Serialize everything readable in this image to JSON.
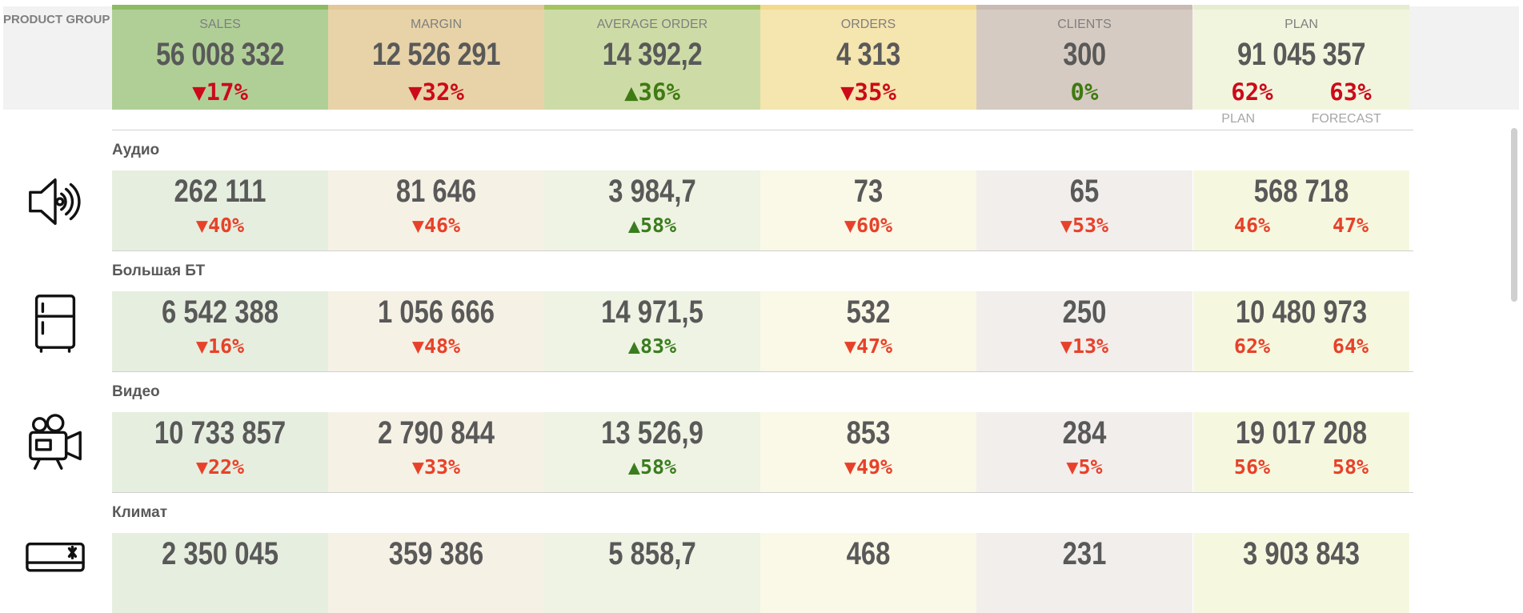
{
  "header": {
    "group_label": "PRODUCT GROUP",
    "columns": [
      {
        "key": "sales",
        "name": "SALES",
        "value": "56 008 332",
        "change": "▼17%",
        "dir": "down",
        "cap_color": "#8dbb62",
        "bg": "#b0cf97"
      },
      {
        "key": "margin",
        "name": "MARGIN",
        "value": "12 526 291",
        "change": "▼32%",
        "dir": "down",
        "cap_color": "#e3c89a",
        "bg": "#e8d3a8"
      },
      {
        "key": "avg_order",
        "name": "AVERAGE ORDER",
        "value": "14 392,2",
        "change": "▲36%",
        "dir": "up",
        "cap_color": "#a4c45f",
        "bg": "#cddca6"
      },
      {
        "key": "orders",
        "name": "ORDERS",
        "value": "4 313",
        "change": "▼35%",
        "dir": "down",
        "cap_color": "#f2d98c",
        "bg": "#f5e5ae"
      },
      {
        "key": "clients",
        "name": "CLIENTS",
        "value": "300",
        "change": "0%",
        "dir": "up",
        "cap_color": "#c9bbb1",
        "bg": "#d6cbc2"
      },
      {
        "key": "plan",
        "name": "PLAN",
        "value": "91 045 357",
        "plan_pct": "62%",
        "forecast_pct": "63%",
        "cap_color": "#e5ecd1",
        "bg": "#f2f5dd"
      }
    ],
    "plan_label": "PLAN",
    "forecast_label": "FORECAST"
  },
  "categories": [
    {
      "title": "Аудио",
      "icon": "speaker-icon",
      "values": [
        "262 111",
        "81 646",
        "3 984,7",
        "73",
        "65",
        "568 718"
      ],
      "changes": [
        "▼40%",
        "▼46%",
        "▲58%",
        "▼60%",
        "▼53%"
      ],
      "dirs": [
        "down",
        "down",
        "up",
        "down",
        "down"
      ],
      "plan_pct": "46%",
      "forecast_pct": "47%"
    },
    {
      "title": "Большая БТ",
      "icon": "fridge-icon",
      "values": [
        "6 542 388",
        "1 056 666",
        "14 971,5",
        "532",
        "250",
        "10 480 973"
      ],
      "changes": [
        "▼16%",
        "▼48%",
        "▲83%",
        "▼47%",
        "▼13%"
      ],
      "dirs": [
        "down",
        "down",
        "up",
        "down",
        "down"
      ],
      "plan_pct": "62%",
      "forecast_pct": "64%"
    },
    {
      "title": "Видео",
      "icon": "video-camera-icon",
      "values": [
        "10 733 857",
        "2 790 844",
        "13 526,9",
        "853",
        "284",
        "19 017 208"
      ],
      "changes": [
        "▼22%",
        "▼33%",
        "▲58%",
        "▼49%",
        "▼5%"
      ],
      "dirs": [
        "down",
        "down",
        "up",
        "down",
        "down"
      ],
      "plan_pct": "56%",
      "forecast_pct": "58%"
    },
    {
      "title": "Климат",
      "icon": "air-conditioner-icon",
      "values": [
        "2 350 045",
        "359 386",
        "5 858,7",
        "468",
        "231",
        "3 903 843"
      ],
      "changes": [],
      "dirs": [],
      "plan_pct": "",
      "forecast_pct": ""
    }
  ],
  "row_colors": [
    "#e6efdf",
    "#f6f1e5",
    "#eef3e3",
    "#faf8e6",
    "#f1eeec",
    "#f5f8df"
  ]
}
